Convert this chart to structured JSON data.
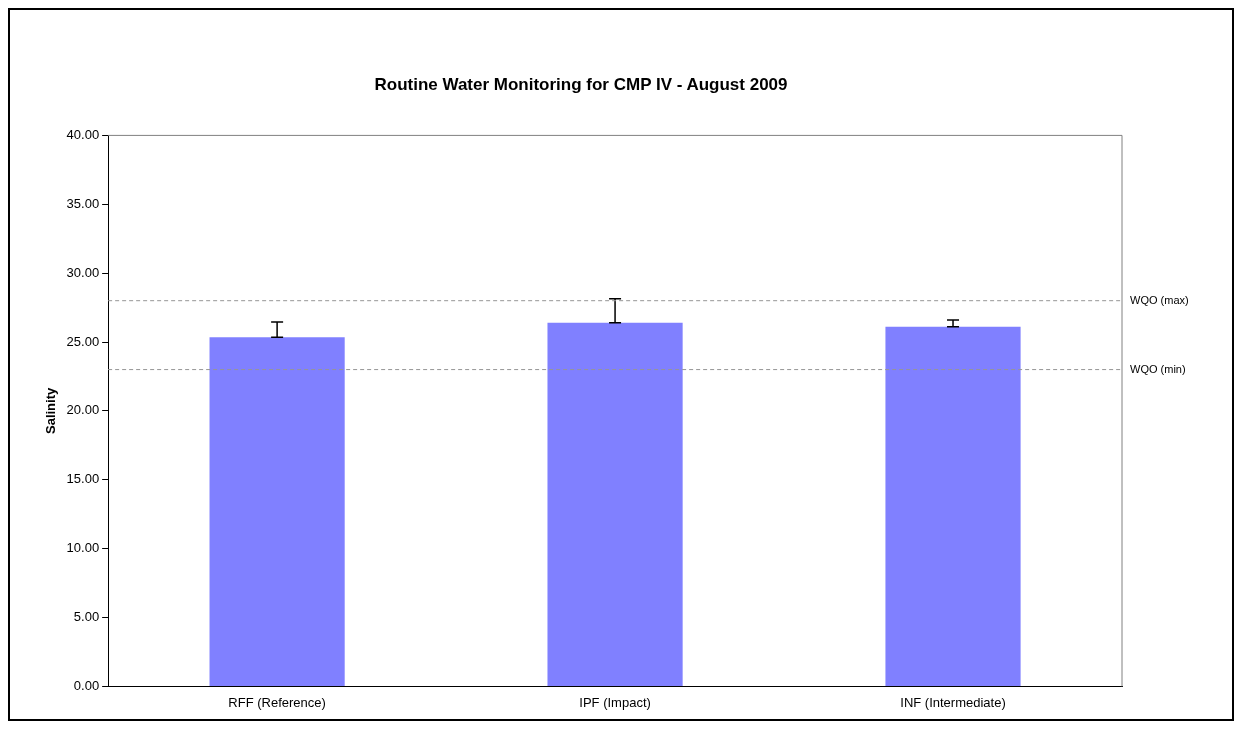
{
  "chart_data": {
    "type": "bar",
    "title": "Routine Water Monitoring for CMP IV - August 2009",
    "ylabel": "Salinity",
    "categories": [
      "RFF (Reference)",
      "IPF (Impact)",
      "INF (Intermediate)"
    ],
    "values": [
      25.35,
      26.4,
      26.1
    ],
    "color": "#8080ff",
    "errors": [
      [
        25.35,
        26.45
      ],
      [
        26.4,
        28.15
      ],
      [
        26.1,
        26.6
      ]
    ],
    "ylim": [
      0,
      40
    ],
    "yticks": [
      {
        "value": 0,
        "label": "0.00"
      },
      {
        "value": 5,
        "label": "5.00"
      },
      {
        "value": 10,
        "label": "10.00"
      },
      {
        "value": 15,
        "label": "15.00"
      },
      {
        "value": 20,
        "label": "20.00"
      },
      {
        "value": 25,
        "label": "25.00"
      },
      {
        "value": 30,
        "label": "30.00"
      },
      {
        "value": 35,
        "label": "35.00"
      },
      {
        "value": 40,
        "label": "40.00"
      }
    ],
    "ref_lines": [
      {
        "axis": "y",
        "value": 28,
        "label": "WQO (max)",
        "color": "#969696",
        "line_style": "dashed"
      },
      {
        "axis": "y",
        "value": 23,
        "label": "WQO (min)",
        "color": "#969696",
        "line_style": "dashed"
      }
    ],
    "grid": false,
    "legend": false
  }
}
